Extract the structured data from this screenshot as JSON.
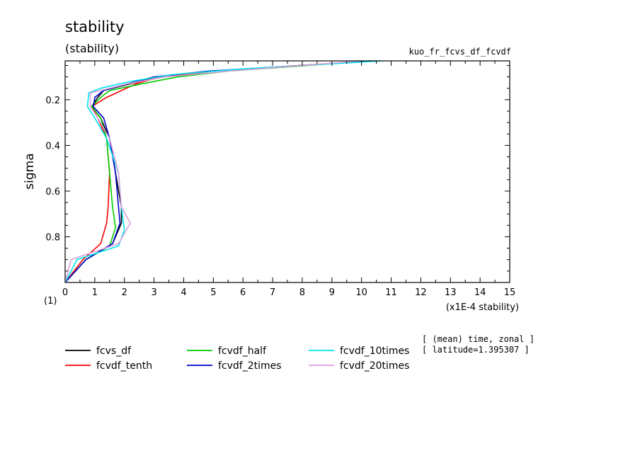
{
  "chart_data": {
    "type": "line",
    "title": "stability",
    "subtitle": "(stability)",
    "experiment": "kuo_fr_fcvs_df_fcvdf",
    "ylabel": "sigma",
    "xlabel": "(x1E-4 stability)",
    "origin_label": "(1)",
    "info_line1": "[ (mean) time, zonal ]",
    "info_line2": "[ latitude=1.395307 ]",
    "xlim": [
      0,
      15
    ],
    "ylim": [
      1.0,
      0.03
    ],
    "x_ticks": [
      0,
      1,
      2,
      3,
      4,
      5,
      6,
      7,
      8,
      9,
      10,
      11,
      12,
      13,
      14,
      15
    ],
    "y_ticks": [
      0.2,
      0.4,
      0.6,
      0.8
    ],
    "y_tick_labels": [
      "0.2",
      "0.4",
      "0.6",
      "0.8"
    ],
    "series": [
      {
        "name": "fcvs_df",
        "color": "#000000",
        "x": [
          10.3,
          5.0,
          3.2,
          2.2,
          1.3,
          1.1,
          0.9,
          1.2,
          1.5,
          1.7,
          1.9,
          1.9,
          1.6,
          0.7,
          0.0
        ],
        "y": [
          0.03,
          0.075,
          0.1,
          0.13,
          0.16,
          0.19,
          0.23,
          0.28,
          0.37,
          0.52,
          0.67,
          0.74,
          0.83,
          0.9,
          1.0
        ]
      },
      {
        "name": "fcvdf_tenth",
        "color": "#ff0000",
        "x": [
          10.3,
          5.0,
          3.2,
          2.4,
          1.9,
          1.4,
          0.9,
          1.1,
          1.4,
          1.5,
          1.45,
          1.4,
          1.2,
          0.6,
          0.0
        ],
        "y": [
          0.03,
          0.075,
          0.1,
          0.13,
          0.16,
          0.19,
          0.23,
          0.28,
          0.37,
          0.52,
          0.67,
          0.74,
          0.83,
          0.9,
          1.0
        ]
      },
      {
        "name": "fcvdf_half",
        "color": "#00cc00",
        "x": [
          10.3,
          5.5,
          3.8,
          2.6,
          1.5,
          1.2,
          0.9,
          1.2,
          1.4,
          1.5,
          1.6,
          1.7,
          1.5,
          0.7,
          0.0
        ],
        "y": [
          0.03,
          0.075,
          0.1,
          0.13,
          0.16,
          0.19,
          0.23,
          0.28,
          0.37,
          0.52,
          0.67,
          0.76,
          0.84,
          0.9,
          1.0
        ]
      },
      {
        "name": "fcvdf_2times",
        "color": "#0000cc",
        "x": [
          10.5,
          4.8,
          3.0,
          2.1,
          1.3,
          1.0,
          0.95,
          1.3,
          1.5,
          1.7,
          1.8,
          1.85,
          1.6,
          0.7,
          0.0
        ],
        "y": [
          0.03,
          0.075,
          0.1,
          0.13,
          0.16,
          0.19,
          0.23,
          0.28,
          0.37,
          0.52,
          0.67,
          0.74,
          0.83,
          0.9,
          1.0
        ]
      },
      {
        "name": "fcvdf_10times",
        "color": "#00e5ee",
        "x": [
          10.7,
          6.0,
          3.6,
          2.2,
          1.2,
          0.8,
          0.75,
          1.0,
          1.4,
          1.8,
          1.9,
          2.0,
          1.8,
          0.4,
          0.0
        ],
        "y": [
          0.03,
          0.065,
          0.09,
          0.12,
          0.15,
          0.17,
          0.23,
          0.28,
          0.37,
          0.52,
          0.67,
          0.77,
          0.84,
          0.9,
          1.0
        ]
      },
      {
        "name": "fcvdf_20times",
        "color": "#dda0dd",
        "x": [
          10.0,
          5.5,
          3.4,
          2.1,
          1.2,
          0.85,
          0.85,
          1.1,
          1.5,
          1.8,
          1.9,
          2.2,
          1.8,
          0.2,
          0.0
        ],
        "y": [
          0.03,
          0.075,
          0.1,
          0.13,
          0.16,
          0.17,
          0.23,
          0.28,
          0.37,
          0.52,
          0.67,
          0.74,
          0.83,
          0.9,
          1.0
        ]
      }
    ]
  }
}
